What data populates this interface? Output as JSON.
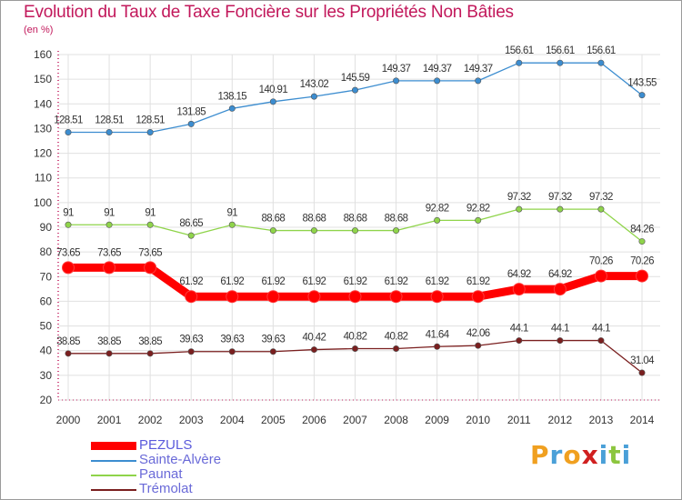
{
  "title": "Evolution du Taux de Taxe Foncière sur les Propriétés Non Bâties",
  "unit": "(en %)",
  "logo": [
    "P",
    "r",
    "o",
    "x",
    "i",
    "t",
    "i"
  ],
  "logo_colors": [
    "#f0a020",
    "#4aa0d8",
    "#f0a020",
    "#d02020",
    "#4aa0d8",
    "#8cc63e",
    "#4aa0d8"
  ],
  "colors": {
    "title": "#c2185b",
    "grid": "#e0e0e0",
    "axis": "#c2185b"
  },
  "chart_data": {
    "type": "line",
    "title": "Evolution du Taux de Taxe Foncière sur les Propriétés Non Bâties",
    "ylabel": "(en %)",
    "xlabel": "",
    "categories": [
      "2000",
      "2001",
      "2002",
      "2003",
      "2004",
      "2005",
      "2006",
      "2007",
      "2008",
      "2009",
      "2010",
      "2011",
      "2012",
      "2013",
      "2014"
    ],
    "ylim": [
      20,
      160
    ],
    "yticks": [
      20,
      30,
      40,
      50,
      60,
      70,
      80,
      90,
      100,
      110,
      120,
      130,
      140,
      150,
      160
    ],
    "grid": true,
    "legend_position": "bottom-left",
    "series": [
      {
        "name": "PEZULS",
        "color": "#ff0000",
        "width": 9,
        "values": [
          73.65,
          73.65,
          73.65,
          61.92,
          61.92,
          61.92,
          61.92,
          61.92,
          61.92,
          61.92,
          61.92,
          64.92,
          64.92,
          70.26,
          70.26
        ],
        "labels": [
          "73.65",
          "73.65",
          "73.65",
          "61.92",
          "61.92",
          "61.92",
          "61.92",
          "61.92",
          "61.92",
          "61.92",
          "61.92",
          "64.92",
          "64.92",
          "70.26",
          "70.26"
        ]
      },
      {
        "name": "Sainte-Alvère",
        "color": "#3c8dd0",
        "width": 1.3,
        "values": [
          128.51,
          128.51,
          128.51,
          131.85,
          138.15,
          140.91,
          143.02,
          145.59,
          149.37,
          149.37,
          149.37,
          156.61,
          156.61,
          156.61,
          143.55
        ],
        "labels": [
          "128.51",
          "128.51",
          "128.51",
          "131.85",
          "138.15",
          "140.91",
          "143.02",
          "145.59",
          "149.37",
          "149.37",
          "149.37",
          "156.61",
          "156.61",
          "156.61",
          "143.55"
        ]
      },
      {
        "name": "Paunat",
        "color": "#8fd44a",
        "width": 1.3,
        "values": [
          91,
          91,
          91,
          86.65,
          91,
          88.68,
          88.68,
          88.68,
          88.68,
          92.82,
          92.82,
          97.32,
          97.32,
          97.32,
          84.26
        ],
        "labels": [
          "91",
          "91",
          "91",
          "86.65",
          "91",
          "88.68",
          "88.68",
          "88.68",
          "88.68",
          "92.82",
          "92.82",
          "97.32",
          "97.32",
          "97.32",
          "84.26"
        ]
      },
      {
        "name": "Trémolat",
        "color": "#7a1f1f",
        "width": 1.3,
        "values": [
          38.85,
          38.85,
          38.85,
          39.63,
          39.63,
          39.63,
          40.42,
          40.82,
          40.82,
          41.64,
          42.06,
          44.1,
          44.1,
          44.1,
          31.04
        ],
        "labels": [
          "38.85",
          "38.85",
          "38.85",
          "39.63",
          "39.63",
          "39.63",
          "40.42",
          "40.82",
          "40.82",
          "41.64",
          "42.06",
          "44.1",
          "44.1",
          "44.1",
          "31.04"
        ]
      }
    ]
  }
}
